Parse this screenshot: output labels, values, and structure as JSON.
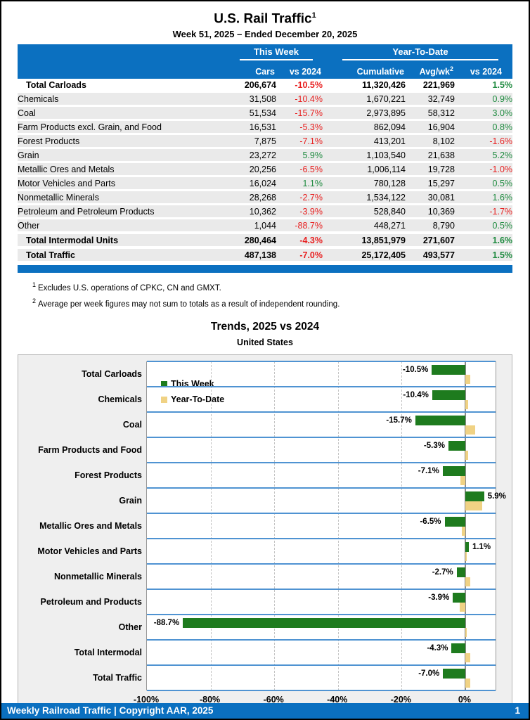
{
  "report": {
    "title": "U.S. Rail Traffic",
    "title_footnote_ref": "1",
    "subtitle": "Week 51, 2025 – Ended December 20, 2025"
  },
  "table": {
    "group_headers": {
      "this_week": "This Week",
      "year_to_date": "Year-To-Date"
    },
    "column_headers": {
      "cars": "Cars",
      "this_week_vs": "vs 2024",
      "cumulative": "Cumulative",
      "avg_per_week": "Avg/wk",
      "avg_per_week_footnote_ref": "2",
      "ytd_vs": "vs 2024"
    },
    "rows": [
      {
        "label": "Total Carloads",
        "style": "total",
        "cars": "206,674",
        "this_week_vs_2024": "-10.5%",
        "cumulative": "11,320,426",
        "avg_per_week": "221,969",
        "ytd_vs_2024": "1.5%"
      },
      {
        "label": "Chemicals",
        "style": "commodity",
        "cars": "31,508",
        "this_week_vs_2024": "-10.4%",
        "cumulative": "1,670,221",
        "avg_per_week": "32,749",
        "ytd_vs_2024": "0.9%"
      },
      {
        "label": "Coal",
        "style": "commodity",
        "cars": "51,534",
        "this_week_vs_2024": "-15.7%",
        "cumulative": "2,973,895",
        "avg_per_week": "58,312",
        "ytd_vs_2024": "3.0%"
      },
      {
        "label": "Farm Products excl. Grain, and Food",
        "style": "commodity",
        "cars": "16,531",
        "this_week_vs_2024": "-5.3%",
        "cumulative": "862,094",
        "avg_per_week": "16,904",
        "ytd_vs_2024": "0.8%"
      },
      {
        "label": "Forest Products",
        "style": "commodity",
        "cars": "7,875",
        "this_week_vs_2024": "-7.1%",
        "cumulative": "413,201",
        "avg_per_week": "8,102",
        "ytd_vs_2024": "-1.6%"
      },
      {
        "label": "Grain",
        "style": "commodity",
        "cars": "23,272",
        "this_week_vs_2024": "5.9%",
        "cumulative": "1,103,540",
        "avg_per_week": "21,638",
        "ytd_vs_2024": "5.2%"
      },
      {
        "label": "Metallic Ores and Metals",
        "style": "commodity",
        "cars": "20,256",
        "this_week_vs_2024": "-6.5%",
        "cumulative": "1,006,114",
        "avg_per_week": "19,728",
        "ytd_vs_2024": "-1.0%"
      },
      {
        "label": "Motor Vehicles and Parts",
        "style": "commodity",
        "cars": "16,024",
        "this_week_vs_2024": "1.1%",
        "cumulative": "780,128",
        "avg_per_week": "15,297",
        "ytd_vs_2024": "0.5%"
      },
      {
        "label": "Nonmetallic Minerals",
        "style": "commodity",
        "cars": "28,268",
        "this_week_vs_2024": "-2.7%",
        "cumulative": "1,534,122",
        "avg_per_week": "30,081",
        "ytd_vs_2024": "1.6%"
      },
      {
        "label": "Petroleum and Petroleum Products",
        "style": "commodity",
        "cars": "10,362",
        "this_week_vs_2024": "-3.9%",
        "cumulative": "528,840",
        "avg_per_week": "10,369",
        "ytd_vs_2024": "-1.7%"
      },
      {
        "label": "Other",
        "style": "commodity",
        "cars": "1,044",
        "this_week_vs_2024": "-88.7%",
        "cumulative": "448,271",
        "avg_per_week": "8,790",
        "ytd_vs_2024": "0.5%"
      },
      {
        "label": "Total Intermodal Units",
        "style": "total",
        "gap_above": true,
        "cars": "280,464",
        "this_week_vs_2024": "-4.3%",
        "cumulative": "13,851,979",
        "avg_per_week": "271,607",
        "ytd_vs_2024": "1.6%"
      },
      {
        "label": "Total Traffic",
        "style": "total",
        "gap_above": true,
        "cars": "487,138",
        "this_week_vs_2024": "-7.0%",
        "cumulative": "25,172,405",
        "avg_per_week": "493,577",
        "ytd_vs_2024": "1.5%"
      }
    ]
  },
  "footnotes": [
    {
      "ref": "1",
      "text": "Excludes U.S. operations of CPKC, CN and GMXT."
    },
    {
      "ref": "2",
      "text": "Average per week figures may not sum to totals as a result of independent rounding."
    }
  ],
  "chart": {
    "title": "Trends, 2025 vs 2024",
    "subtitle": "United States",
    "legend": [
      {
        "label": "This Week",
        "color": "#1e7b1e"
      },
      {
        "label": "Year-To-Date",
        "color": "#f0d284"
      }
    ]
  },
  "chart_data": {
    "type": "bar",
    "orientation": "horizontal",
    "title": "Trends, 2025 vs 2024",
    "subtitle": "United States",
    "categories": [
      "Total Carloads",
      "Chemicals",
      "Coal",
      "Farm Products and Food",
      "Forest Products",
      "Grain",
      "Metallic Ores and Metals",
      "Motor Vehicles and Parts",
      "Nonmetallic Minerals",
      "Petroleum and Products",
      "Other",
      "Total Intermodal",
      "Total Traffic"
    ],
    "series": [
      {
        "name": "This Week",
        "color": "#1e7b1e",
        "values": [
          -10.5,
          -10.4,
          -15.7,
          -5.3,
          -7.1,
          5.9,
          -6.5,
          1.1,
          -2.7,
          -3.9,
          -88.7,
          -4.3,
          -7.0
        ],
        "labels": [
          "-10.5%",
          "-10.4%",
          "-15.7%",
          "-5.3%",
          "-7.1%",
          "5.9%",
          "-6.5%",
          "1.1%",
          "-2.7%",
          "-3.9%",
          "-88.7%",
          "-4.3%",
          "-7.0%"
        ]
      },
      {
        "name": "Year-To-Date",
        "color": "#f0d284",
        "values": [
          1.5,
          0.9,
          3.0,
          0.8,
          -1.6,
          5.2,
          -1.0,
          0.5,
          1.6,
          -1.7,
          0.5,
          1.6,
          1.5
        ]
      }
    ],
    "x_axis": {
      "unit": "%",
      "min": -100,
      "max": 9.5,
      "tick_values": [
        -100,
        -80,
        -60,
        -40,
        -20,
        0
      ],
      "tick_labels": [
        "-100%",
        "-80%",
        "-60%",
        "-40%",
        "-20%",
        "0%"
      ]
    },
    "grid": "vertical-dashed",
    "legend_position": "inside-top-left"
  },
  "footer": {
    "text": "Weekly Railroad Traffic | Copyright AAR, 2025",
    "page_number": "1"
  },
  "colors": {
    "header_blue": "#0b70c0",
    "band_line_blue": "#4f93d2",
    "bar_green": "#1e7b1e",
    "bar_tan": "#f0d284",
    "negative_red": "#e81f1f",
    "positive_green": "#1d8a3e"
  }
}
